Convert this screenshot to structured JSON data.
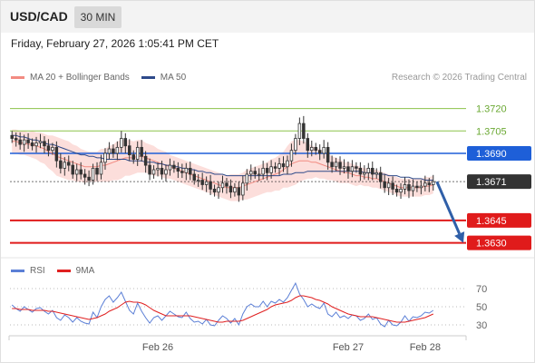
{
  "header": {
    "symbol": "USD/CAD",
    "timeframe": "30 MIN"
  },
  "datetime": "Friday, February 27, 2026 1:05:41 PM CET",
  "legend": {
    "ma20_label": "MA 20 + Bollinger Bands",
    "ma50_label": "MA 50",
    "ma20_color": "#f28b82",
    "ma50_color": "#2e4a8a"
  },
  "credit": "Research © 2026 Trading Central",
  "rsi_legend": {
    "rsi_label": "RSI",
    "ma9_label": "9MA",
    "rsi_color": "#5b7fd6",
    "ma9_color": "#e02020"
  },
  "chart_data": {
    "type": "candlestick",
    "price_ylim": [
      1.362,
      1.3735
    ],
    "levels": [
      {
        "value": 1.372,
        "label": "1.3720",
        "kind": "resistance",
        "color": "#8bc34a"
      },
      {
        "value": 1.3705,
        "label": "1.3705",
        "kind": "resistance",
        "color": "#8bc34a"
      },
      {
        "value": 1.369,
        "label": "1.3690",
        "kind": "pivot",
        "color": "#1e5fd8"
      },
      {
        "value": 1.3671,
        "label": "1.3671",
        "kind": "last",
        "color": "#333333"
      },
      {
        "value": 1.3645,
        "label": "1.3645",
        "kind": "support",
        "color": "#e01b1b"
      },
      {
        "value": 1.363,
        "label": "1.3630",
        "kind": "support",
        "color": "#e01b1b"
      }
    ],
    "close": [
      1.37,
      1.3699,
      1.3696,
      1.3699,
      1.3697,
      1.3695,
      1.3697,
      1.3698,
      1.3695,
      1.3692,
      1.3694,
      1.3685,
      1.368,
      1.3684,
      1.3682,
      1.3676,
      1.3679,
      1.3676,
      1.3674,
      1.3672,
      1.368,
      1.3676,
      1.3684,
      1.369,
      1.3693,
      1.369,
      1.3694,
      1.37,
      1.3695,
      1.3689,
      1.3686,
      1.3694,
      1.3688,
      1.3682,
      1.3676,
      1.3679,
      1.368,
      1.3676,
      1.3679,
      1.3682,
      1.368,
      1.3678,
      1.3677,
      1.368,
      1.3676,
      1.3672,
      1.3672,
      1.3669,
      1.3671,
      1.3666,
      1.3664,
      1.3667,
      1.367,
      1.3668,
      1.3664,
      1.3667,
      1.3662,
      1.367,
      1.3676,
      1.3678,
      1.3676,
      1.3676,
      1.368,
      1.3677,
      1.3681,
      1.368,
      1.3683,
      1.3681,
      1.3685,
      1.3692,
      1.37,
      1.371,
      1.37,
      1.3692,
      1.3694,
      1.3692,
      1.369,
      1.3694,
      1.3684,
      1.3681,
      1.3684,
      1.368,
      1.3681,
      1.3678,
      1.3681,
      1.368,
      1.3676,
      1.3677,
      1.368,
      1.3676,
      1.3677,
      1.3671,
      1.3667,
      1.367,
      1.3666,
      1.3664,
      1.3666,
      1.3669,
      1.3665,
      1.3668,
      1.3667,
      1.3668,
      1.367,
      1.3669,
      1.3671
    ],
    "ma20": [
      1.3698,
      1.3698,
      1.3697,
      1.3697,
      1.3696,
      1.3696,
      1.3695,
      1.3694,
      1.3693,
      1.3691,
      1.369,
      1.3688,
      1.3687,
      1.3686,
      1.3685,
      1.3684,
      1.3683,
      1.3682,
      1.3681,
      1.3681,
      1.3681,
      1.3681,
      1.3682,
      1.3682,
      1.3683,
      1.3684,
      1.3685,
      1.3686,
      1.3687,
      1.3687,
      1.3687,
      1.3688,
      1.3688,
      1.3687,
      1.3686,
      1.3685,
      1.3684,
      1.3683,
      1.3682,
      1.3681,
      1.368,
      1.3679,
      1.3678,
      1.3677,
      1.3676,
      1.3675,
      1.3674,
      1.3673,
      1.3672,
      1.3671,
      1.367,
      1.3669,
      1.3668,
      1.3667,
      1.3667,
      1.3667,
      1.3667,
      1.3668,
      1.3669,
      1.367,
      1.3671,
      1.3672,
      1.3673,
      1.3674,
      1.3675,
      1.3676,
      1.3677,
      1.3679,
      1.3681,
      1.3683,
      1.3684,
      1.3685,
      1.3685,
      1.3685,
      1.3684,
      1.3684,
      1.3683,
      1.3682,
      1.3681,
      1.368,
      1.3679,
      1.3678,
      1.3677,
      1.3677,
      1.3676,
      1.3675,
      1.3675,
      1.3674,
      1.3674,
      1.3673,
      1.3673,
      1.3672,
      1.3671,
      1.367,
      1.3669,
      1.3668,
      1.3667,
      1.3667,
      1.3667,
      1.3667,
      1.3667,
      1.3667,
      1.3668,
      1.3668,
      1.3669
    ],
    "ma50": [
      1.3702,
      1.3702,
      1.3701,
      1.3701,
      1.37,
      1.3699,
      1.3699,
      1.3698,
      1.3697,
      1.3696,
      1.3696,
      1.3695,
      1.3694,
      1.3693,
      1.3692,
      1.3691,
      1.369,
      1.3689,
      1.3689,
      1.3688,
      1.3688,
      1.3687,
      1.3687,
      1.3686,
      1.3686,
      1.3686,
      1.3686,
      1.3686,
      1.3686,
      1.3685,
      1.3685,
      1.3685,
      1.3685,
      1.3684,
      1.3684,
      1.3684,
      1.3683,
      1.3683,
      1.3682,
      1.3682,
      1.3681,
      1.3681,
      1.368,
      1.368,
      1.3679,
      1.3679,
      1.3678,
      1.3678,
      1.3677,
      1.3677,
      1.3676,
      1.3676,
      1.3676,
      1.3675,
      1.3675,
      1.3675,
      1.3675,
      1.3675,
      1.3675,
      1.3675,
      1.3675,
      1.3675,
      1.3675,
      1.3675,
      1.3675,
      1.3675,
      1.3675,
      1.3676,
      1.3676,
      1.3676,
      1.3677,
      1.3677,
      1.3677,
      1.3678,
      1.3678,
      1.3678,
      1.3678,
      1.3678,
      1.3678,
      1.3678,
      1.3678,
      1.3678,
      1.3678,
      1.3678,
      1.3678,
      1.3678,
      1.3678,
      1.3677,
      1.3677,
      1.3677,
      1.3676,
      1.3676,
      1.3676,
      1.3675,
      1.3675,
      1.3675,
      1.3674,
      1.3674,
      1.3674,
      1.3673,
      1.3673,
      1.3673,
      1.3672,
      1.3672,
      1.3672
    ],
    "band_width": [
      0.0008,
      0.0008,
      0.0008,
      0.0008,
      0.0008,
      0.0009,
      0.0009,
      0.001,
      0.001,
      0.0011,
      0.0012,
      0.0013,
      0.0013,
      0.0013,
      0.0013,
      0.0012,
      0.0012,
      0.0011,
      0.0011,
      0.001,
      0.001,
      0.001,
      0.0011,
      0.0011,
      0.0012,
      0.0012,
      0.0013,
      0.0013,
      0.0012,
      0.0012,
      0.0011,
      0.0011,
      0.0011,
      0.001,
      0.001,
      0.001,
      0.0009,
      0.0009,
      0.0009,
      0.0008,
      0.0008,
      0.0008,
      0.0008,
      0.0008,
      0.0008,
      0.0008,
      0.0008,
      0.0008,
      0.0008,
      0.0008,
      0.0008,
      0.0008,
      0.0008,
      0.0008,
      0.0009,
      0.0009,
      0.0009,
      0.0009,
      0.001,
      0.001,
      0.001,
      0.001,
      0.001,
      0.001,
      0.0011,
      0.0011,
      0.0012,
      0.0012,
      0.0014,
      0.0015,
      0.0015,
      0.0014,
      0.0013,
      0.0012,
      0.0011,
      0.001,
      0.001,
      0.0009,
      0.0009,
      0.0008,
      0.0008,
      0.0008,
      0.0007,
      0.0007,
      0.0007,
      0.0007,
      0.0006,
      0.0006,
      0.0006,
      0.0006,
      0.0006,
      0.0006,
      0.0006,
      0.0006,
      0.0006,
      0.0006,
      0.0006,
      0.0006,
      0.0006,
      0.0006,
      0.0006,
      0.0006,
      0.0006,
      0.0006,
      0.0006
    ],
    "forecast": {
      "from": 1.3671,
      "to": 1.363
    },
    "rsi_ylim": [
      20,
      80
    ],
    "rsi_levels": [
      70,
      50,
      30
    ],
    "rsi": [
      52,
      48,
      45,
      50,
      47,
      44,
      48,
      49,
      45,
      42,
      46,
      38,
      35,
      41,
      38,
      33,
      38,
      34,
      32,
      31,
      44,
      38,
      50,
      58,
      62,
      55,
      60,
      66,
      56,
      46,
      42,
      54,
      45,
      38,
      32,
      38,
      40,
      35,
      40,
      45,
      42,
      39,
      38,
      44,
      37,
      33,
      34,
      31,
      36,
      30,
      29,
      35,
      40,
      37,
      32,
      37,
      30,
      42,
      50,
      53,
      50,
      50,
      56,
      50,
      56,
      54,
      58,
      55,
      60,
      68,
      76,
      64,
      58,
      50,
      53,
      50,
      48,
      54,
      42,
      39,
      44,
      38,
      40,
      37,
      41,
      40,
      35,
      37,
      42,
      36,
      38,
      31,
      28,
      35,
      30,
      29,
      33,
      40,
      34,
      39,
      38,
      40,
      44,
      43,
      46
    ],
    "rsi_ma9": [
      48,
      48,
      47,
      47,
      47,
      46,
      46,
      46,
      46,
      45,
      45,
      44,
      43,
      42,
      41,
      40,
      39,
      38,
      37,
      36,
      37,
      38,
      40,
      42,
      45,
      47,
      49,
      52,
      55,
      56,
      55,
      55,
      54,
      52,
      49,
      46,
      44,
      42,
      40,
      40,
      40,
      40,
      40,
      40,
      40,
      39,
      38,
      37,
      36,
      35,
      34,
      33,
      33,
      34,
      34,
      34,
      34,
      35,
      37,
      39,
      41,
      43,
      45,
      47,
      50,
      52,
      53,
      54,
      55,
      57,
      60,
      62,
      62,
      61,
      60,
      58,
      57,
      55,
      53,
      50,
      48,
      46,
      44,
      42,
      41,
      40,
      39,
      39,
      39,
      39,
      38,
      37,
      36,
      35,
      34,
      33,
      33,
      33,
      34,
      35,
      36,
      37,
      38,
      40,
      42
    ],
    "x_labels": [
      {
        "label": "Feb 26",
        "index": 36
      },
      {
        "label": "Feb 27",
        "index": 83
      },
      {
        "label": "Feb 28",
        "index": 102
      }
    ]
  }
}
